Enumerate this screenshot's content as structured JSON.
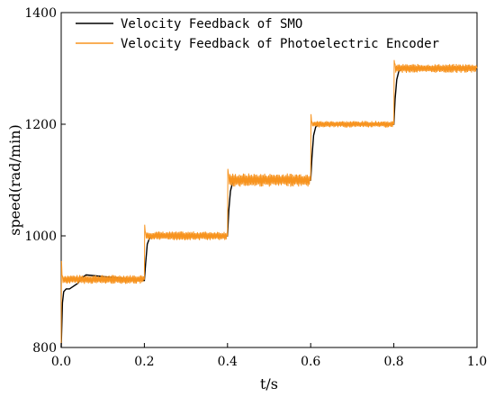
{
  "chart_data": {
    "type": "line",
    "xlabel": "t/s",
    "ylabel": "speed(rad/min)",
    "xlim": [
      0.0,
      1.0
    ],
    "ylim": [
      800,
      1400
    ],
    "xticks": [
      0.0,
      0.2,
      0.4,
      0.6,
      0.8,
      1.0
    ],
    "xtick_labels": [
      "0.0",
      "0.2",
      "0.4",
      "0.6",
      "0.8",
      "1.0"
    ],
    "yticks": [
      800,
      1000,
      1200,
      1400
    ],
    "ytick_labels": [
      "800",
      "1000",
      "1200",
      "1400"
    ],
    "grid": false,
    "legend_position": "top-left",
    "series": [
      {
        "name": "Velocity Feedback of SMO",
        "color": "#000000",
        "step_times": [
          0.0,
          0.2,
          0.4,
          0.6,
          0.8
        ],
        "levels": [
          920,
          1000,
          1100,
          1200,
          1300
        ],
        "x": [
          0.0,
          0.003,
          0.006,
          0.012,
          0.02,
          0.03,
          0.04,
          0.05,
          0.06,
          0.2,
          0.203,
          0.207,
          0.212,
          0.22,
          0.4,
          0.403,
          0.407,
          0.412,
          0.42,
          0.6,
          0.603,
          0.607,
          0.612,
          0.62,
          0.8,
          0.803,
          0.807,
          0.812,
          0.82,
          1.0
        ],
        "y": [
          800,
          880,
          900,
          905,
          905,
          910,
          915,
          925,
          930,
          920,
          950,
          985,
          995,
          1000,
          1000,
          1045,
          1080,
          1095,
          1100,
          1100,
          1140,
          1180,
          1195,
          1200,
          1200,
          1245,
          1280,
          1295,
          1300,
          1300
        ]
      },
      {
        "name": "Velocity Feedback of Photoelectric Encoder",
        "color": "#f7931e",
        "step_times": [
          0.0,
          0.2,
          0.4,
          0.6,
          0.8
        ],
        "levels": [
          922,
          1000,
          1100,
          1200,
          1300
        ],
        "overshoot_peaks": [
          955,
          1020,
          1120,
          1218,
          1315
        ],
        "ripple_amplitude": [
          8,
          8,
          12,
          6,
          8
        ]
      }
    ]
  }
}
